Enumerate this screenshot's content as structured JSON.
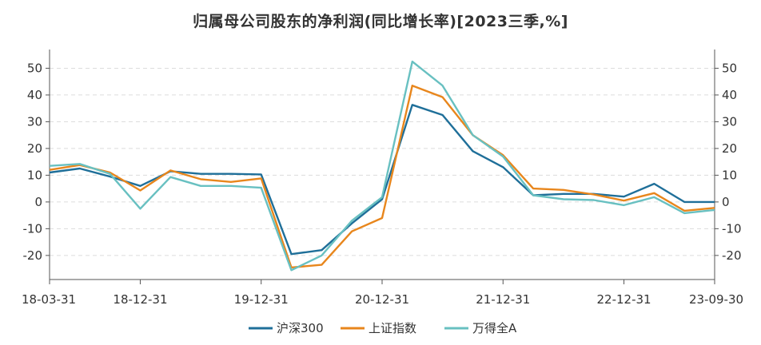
{
  "chart_data": {
    "type": "line",
    "title": "归属母公司股东的净利润(同比增长率)[2023三季,%]",
    "x": [
      "18-03-31",
      "18-06-30",
      "18-09-30",
      "18-12-31",
      "19-03-31",
      "19-06-30",
      "19-09-30",
      "19-12-31",
      "20-03-31",
      "20-06-30",
      "20-09-30",
      "20-12-31",
      "21-03-31",
      "21-06-30",
      "21-09-30",
      "21-12-31",
      "22-03-31",
      "22-06-30",
      "22-09-30",
      "22-12-31",
      "23-03-31",
      "23-06-30",
      "23-09-30"
    ],
    "x_tick_labels": [
      "18-03-31",
      "18-12-31",
      "19-12-31",
      "20-12-31",
      "21-12-31",
      "22-12-31",
      "23-09-30"
    ],
    "ylim": [
      -29,
      57
    ],
    "y_ticks": [
      -20,
      -10,
      0,
      10,
      20,
      30,
      40,
      50
    ],
    "grid": true,
    "legend_position": "bottom",
    "series": [
      {
        "name": "沪深300",
        "color": "#1f6f99",
        "values": [
          11,
          12.5,
          9.5,
          6,
          11.5,
          10.5,
          10.5,
          10.3,
          -19.5,
          -18,
          -8,
          1,
          36.3,
          32.5,
          19,
          13,
          2.5,
          3,
          3,
          2,
          6.8,
          0,
          0
        ]
      },
      {
        "name": "上证指数",
        "color": "#e8861c",
        "values": [
          12,
          13.8,
          11,
          4.3,
          11.8,
          8.5,
          7.5,
          8.8,
          -24.5,
          -23.5,
          -11,
          -6,
          43.5,
          39.2,
          25,
          17.5,
          5,
          4.5,
          2.8,
          0.5,
          3.3,
          -3.3,
          -2.2
        ]
      },
      {
        "name": "万得全A",
        "color": "#68c0c1",
        "values": [
          13.5,
          14.2,
          10.5,
          -2.5,
          9.3,
          6,
          6,
          5.3,
          -25.5,
          -20,
          -7,
          1.8,
          52.5,
          43.5,
          25,
          17,
          2.5,
          1,
          0.7,
          -1.2,
          1.8,
          -4.2,
          -3
        ]
      }
    ]
  }
}
